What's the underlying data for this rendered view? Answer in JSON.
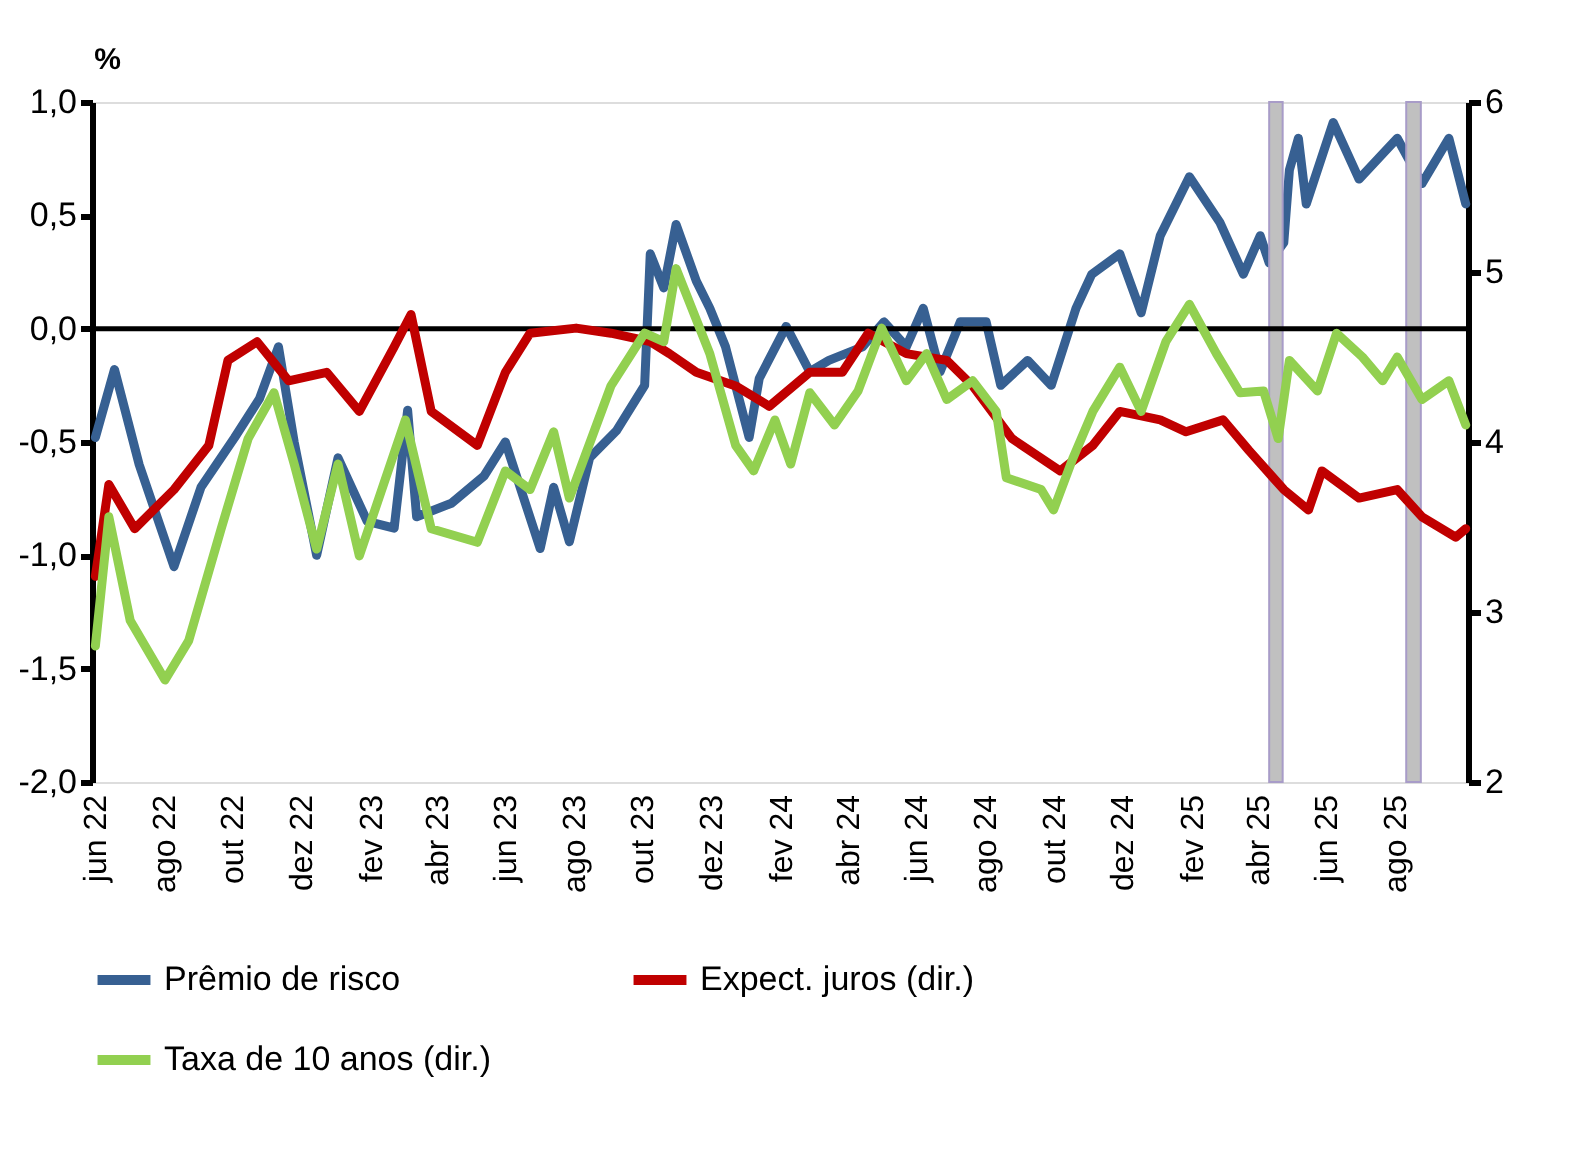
{
  "chart_data": {
    "type": "line",
    "ylabel": "%",
    "legend": "bottom",
    "grid": false,
    "line_style": "solid",
    "marker": "none",
    "xlim": [
      "2022-05-29",
      "2025-10-05"
    ],
    "xticks": [
      {
        "value": "2022-06",
        "label": "jun 22"
      },
      {
        "value": "2022-08",
        "label": "ago 22"
      },
      {
        "value": "2022-10",
        "label": "out 22"
      },
      {
        "value": "2022-12",
        "label": "dez 22"
      },
      {
        "value": "2023-02",
        "label": "fev 23"
      },
      {
        "value": "2023-04",
        "label": "abr 23"
      },
      {
        "value": "2023-06",
        "label": "jun 23"
      },
      {
        "value": "2023-08",
        "label": "ago 23"
      },
      {
        "value": "2023-10",
        "label": "out 23"
      },
      {
        "value": "2023-12",
        "label": "dez 23"
      },
      {
        "value": "2024-02",
        "label": "fev 24"
      },
      {
        "value": "2024-04",
        "label": "abr 24"
      },
      {
        "value": "2024-06",
        "label": "jun 24"
      },
      {
        "value": "2024-08",
        "label": "ago 24"
      },
      {
        "value": "2024-10",
        "label": "out 24"
      },
      {
        "value": "2024-12",
        "label": "dez 24"
      },
      {
        "value": "2025-02",
        "label": "fev 25"
      },
      {
        "value": "2025-04",
        "label": "abr 25"
      },
      {
        "value": "2025-06",
        "label": "jun 25"
      },
      {
        "value": "2025-08",
        "label": "ago 25"
      }
    ],
    "ylim": [
      -2.0,
      1.0
    ],
    "yticks": [
      {
        "value": -2.0,
        "label": "-2,0"
      },
      {
        "value": -1.5,
        "label": "-1,5"
      },
      {
        "value": -1.0,
        "label": "-1,0"
      },
      {
        "value": -0.5,
        "label": "-0,5"
      },
      {
        "value": 0.0,
        "label": "0,0"
      },
      {
        "value": 0.5,
        "label": "0,5"
      },
      {
        "value": 1.0,
        "label": "1,0"
      }
    ],
    "y2lim": [
      2,
      6
    ],
    "y2ticks": [
      2,
      3,
      4,
      5,
      6
    ],
    "ref_lines": [
      {
        "axis": "y",
        "value": 0,
        "color": "#000000"
      }
    ],
    "bands": [
      {
        "axis": "x",
        "from": "2025-04-11",
        "to": "2025-04-23",
        "color": "#c0c0c0"
      },
      {
        "axis": "x",
        "from": "2025-08-11",
        "to": "2025-08-24",
        "color": "#c0c0c0"
      }
    ],
    "series": [
      {
        "name": "Prêmio de risco",
        "color": "#376092",
        "x": [
          "2022-06-01",
          "2022-06-18",
          "2022-07-10",
          "2022-08-10",
          "2022-09-03",
          "2022-10-03",
          "2022-10-25",
          "2022-11-11",
          "2022-11-25",
          "2022-12-15",
          "2023-01-03",
          "2023-01-29",
          "2023-02-22",
          "2023-03-06",
          "2023-03-14",
          "2023-04-14",
          "2023-05-13",
          "2023-06-01",
          "2023-07-02",
          "2023-07-14",
          "2023-07-28",
          "2023-08-15",
          "2023-09-08",
          "2023-10-03",
          "2023-10-08",
          "2023-10-20",
          "2023-10-31",
          "2023-11-18",
          "2023-11-30",
          "2023-12-14",
          "2024-01-04",
          "2024-01-13",
          "2024-02-06",
          "2024-02-27",
          "2024-03-15",
          "2024-04-14",
          "2024-05-03",
          "2024-05-23",
          "2024-06-07",
          "2024-06-22",
          "2024-07-10",
          "2024-08-02",
          "2024-08-15",
          "2024-09-08",
          "2024-09-29",
          "2024-10-21",
          "2024-11-04",
          "2024-11-29",
          "2024-12-18",
          "2025-01-04",
          "2025-01-30",
          "2025-02-26",
          "2025-03-19",
          "2025-04-03",
          "2025-04-11",
          "2025-04-24",
          "2025-04-29",
          "2025-05-07",
          "2025-05-14",
          "2025-06-07",
          "2025-06-30",
          "2025-08-03",
          "2025-08-25",
          "2025-09-18",
          "2025-10-03"
        ],
        "values": [
          -0.48,
          -0.18,
          -0.6,
          -1.05,
          -0.7,
          -0.48,
          -0.31,
          -0.08,
          -0.5,
          -1.0,
          -0.57,
          -0.85,
          -0.88,
          -0.36,
          -0.83,
          -0.77,
          -0.65,
          -0.5,
          -0.97,
          -0.7,
          -0.94,
          -0.57,
          -0.45,
          -0.25,
          0.33,
          0.18,
          0.46,
          0.21,
          0.09,
          -0.08,
          -0.48,
          -0.22,
          0.01,
          -0.19,
          -0.14,
          -0.08,
          0.03,
          -0.08,
          0.09,
          -0.19,
          0.03,
          0.03,
          -0.25,
          -0.14,
          -0.25,
          0.09,
          0.24,
          0.33,
          0.07,
          0.41,
          0.67,
          0.47,
          0.24,
          0.41,
          0.29,
          0.38,
          0.7,
          0.84,
          0.55,
          0.91,
          0.66,
          0.84,
          0.64,
          0.84,
          0.55
        ]
      },
      {
        "name": "Expect. juros (dir.)",
        "color": "#c00000",
        "axis": "y2",
        "x": [
          "2022-06-01",
          "2022-06-13",
          "2022-07-06",
          "2022-08-10",
          "2022-09-10",
          "2022-09-27",
          "2022-10-23",
          "2022-11-20",
          "2022-12-24",
          "2023-01-22",
          "2023-02-22",
          "2023-03-09",
          "2023-03-27",
          "2023-05-07",
          "2023-06-01",
          "2023-06-23",
          "2023-08-03",
          "2023-09-03",
          "2023-10-08",
          "2023-10-25",
          "2023-11-18",
          "2023-12-23",
          "2024-01-22",
          "2024-02-27",
          "2024-03-27",
          "2024-04-19",
          "2024-05-23",
          "2024-06-28",
          "2024-07-21",
          "2024-08-25",
          "2024-10-07",
          "2024-11-05",
          "2024-11-29",
          "2025-01-04",
          "2025-01-27",
          "2025-03-01",
          "2025-03-24",
          "2025-04-24",
          "2025-05-16",
          "2025-05-28",
          "2025-06-30",
          "2025-08-03",
          "2025-08-25",
          "2025-09-24",
          "2025-10-03"
        ],
        "values": [
          3.21,
          3.75,
          3.49,
          3.72,
          3.98,
          4.48,
          4.59,
          4.36,
          4.41,
          4.18,
          4.56,
          4.75,
          4.18,
          3.98,
          4.41,
          4.64,
          4.67,
          4.64,
          4.59,
          4.52,
          4.41,
          4.33,
          4.21,
          4.41,
          4.41,
          4.64,
          4.52,
          4.48,
          4.33,
          4.02,
          3.83,
          3.98,
          4.18,
          4.13,
          4.06,
          4.13,
          3.95,
          3.72,
          3.6,
          3.83,
          3.67,
          3.72,
          3.56,
          3.44,
          3.49
        ]
      },
      {
        "name": "Taxa de 10 anos (dir.)",
        "color": "#92d050",
        "axis": "y2",
        "x": [
          "2022-06-01",
          "2022-06-13",
          "2022-07-02",
          "2022-08-02",
          "2022-08-23",
          "2022-09-21",
          "2022-10-15",
          "2022-11-07",
          "2022-11-25",
          "2022-12-15",
          "2023-01-03",
          "2023-01-22",
          "2023-03-04",
          "2023-03-27",
          "2023-05-07",
          "2023-06-01",
          "2023-06-23",
          "2023-07-14",
          "2023-07-28",
          "2023-09-03",
          "2023-10-03",
          "2023-10-20",
          "2023-10-31",
          "2023-11-30",
          "2023-12-23",
          "2024-01-08",
          "2024-01-27",
          "2024-02-10",
          "2024-02-27",
          "2024-03-20",
          "2024-04-10",
          "2024-05-01",
          "2024-05-23",
          "2024-06-10",
          "2024-06-28",
          "2024-07-21",
          "2024-08-11",
          "2024-08-20",
          "2024-09-20",
          "2024-10-01",
          "2024-10-18",
          "2024-11-05",
          "2024-11-29",
          "2024-12-18",
          "2025-01-09",
          "2025-01-30",
          "2025-02-23",
          "2025-03-16",
          "2025-04-06",
          "2025-04-19",
          "2025-04-29",
          "2025-05-24",
          "2025-06-10",
          "2025-07-03",
          "2025-07-21",
          "2025-08-03",
          "2025-08-25",
          "2025-09-18",
          "2025-10-03"
        ],
        "values": [
          2.8,
          3.56,
          2.95,
          2.6,
          2.83,
          3.49,
          4.02,
          4.29,
          3.87,
          3.37,
          3.87,
          3.33,
          4.13,
          3.49,
          3.41,
          3.83,
          3.72,
          4.06,
          3.67,
          4.33,
          4.64,
          4.59,
          5.02,
          4.52,
          3.98,
          3.83,
          4.13,
          3.87,
          4.29,
          4.1,
          4.3,
          4.67,
          4.36,
          4.52,
          4.25,
          4.36,
          4.18,
          3.79,
          3.72,
          3.6,
          3.9,
          4.18,
          4.44,
          4.18,
          4.59,
          4.81,
          4.52,
          4.29,
          4.3,
          4.02,
          4.48,
          4.3,
          4.64,
          4.5,
          4.36,
          4.5,
          4.25,
          4.36,
          4.1
        ]
      }
    ]
  }
}
